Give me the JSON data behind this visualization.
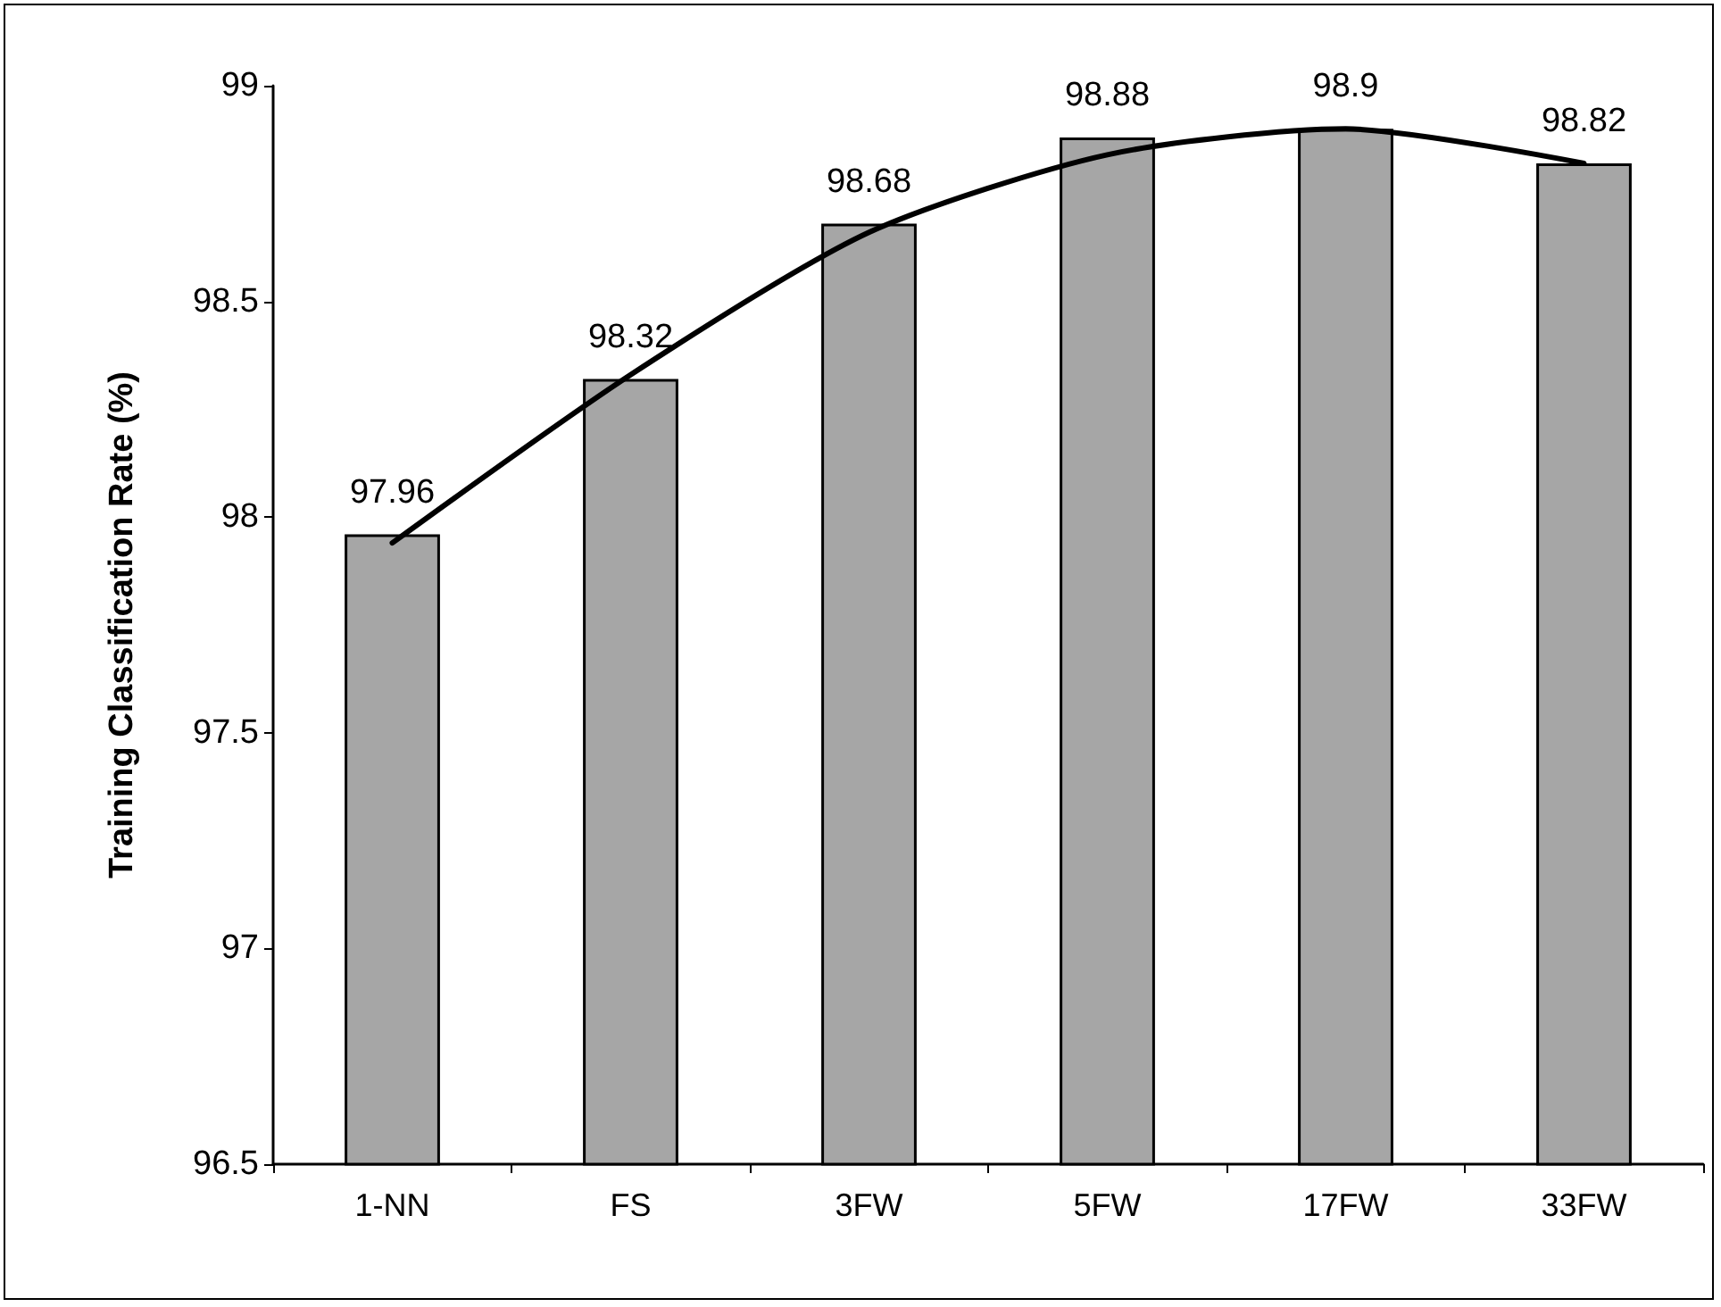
{
  "chart_data": {
    "type": "bar",
    "ylabel": "Training Classification Rate (%)",
    "categories": [
      "1-NN",
      "FS",
      "3FW",
      "5FW",
      "17FW",
      "33FW"
    ],
    "series": [
      {
        "color": "#a6a6a6",
        "values": [
          97.96,
          98.32,
          98.68,
          98.88,
          98.9,
          98.82
        ],
        "value_labels": [
          "97.96",
          "98.32",
          "98.68",
          "98.88",
          "98.9",
          "98.82"
        ]
      },
      {
        "type": "line",
        "color": "#000000",
        "x": [
          "1-NN",
          "FS",
          "3FW",
          "5FW",
          "17FW",
          "33FW"
        ],
        "values": [
          97.94,
          98.33,
          98.66,
          98.84,
          98.9,
          98.82
        ],
        "marker": "none",
        "line_style": "solid"
      }
    ],
    "ylim": [
      96.5,
      99
    ],
    "yticks": [
      96.5,
      97,
      97.5,
      98,
      98.5,
      99
    ],
    "grid": false
  }
}
